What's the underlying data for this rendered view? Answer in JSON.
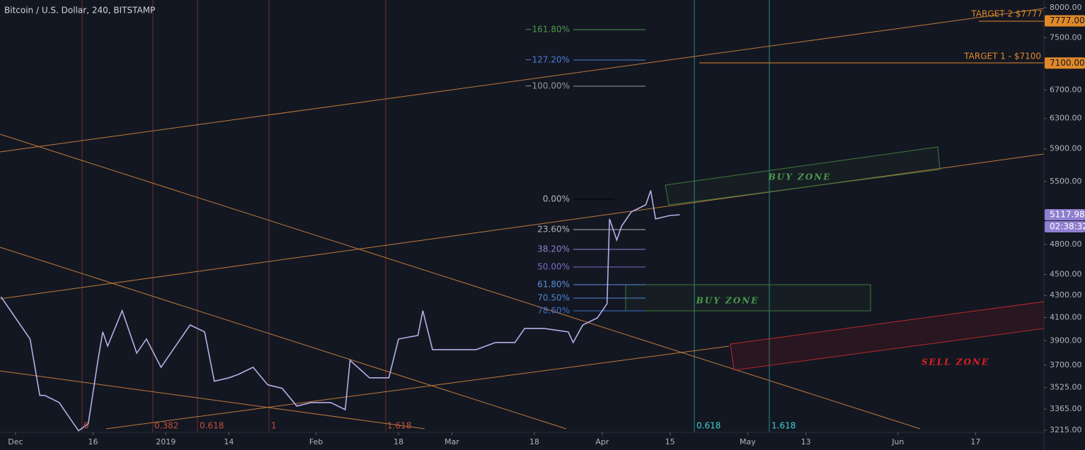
{
  "chart_data": {
    "type": "line",
    "title": "Bitcoin / U.S. Dollar, 240, BITSTAMP",
    "log_scale": true,
    "color": "#b7aee6",
    "x": [
      -3,
      0,
      3,
      5,
      6,
      9,
      11,
      13,
      15,
      17,
      18,
      19,
      22,
      25,
      27,
      30,
      33,
      36,
      39,
      41,
      44,
      46,
      49,
      52,
      55,
      58,
      61,
      65,
      68,
      69,
      73,
      77,
      79,
      83,
      84,
      86,
      90,
      95,
      99,
      103,
      105,
      109,
      114,
      115,
      117,
      120,
      122,
      122.5,
      124,
      125,
      127,
      130,
      131,
      132,
      135,
      137
    ],
    "values": [
      4288,
      4097,
      3914,
      3466,
      3466,
      3413,
      3310,
      3211,
      3260,
      3739,
      3975,
      3855,
      4161,
      3797,
      3914,
      3683,
      3855,
      4035,
      3975,
      3573,
      3600,
      3627,
      3683,
      3546,
      3519,
      3387,
      3413,
      3413,
      3361,
      3739,
      3600,
      3600,
      3914,
      3945,
      4161,
      3826,
      3826,
      3826,
      3885,
      3885,
      4005,
      4005,
      3975,
      3885,
      4035,
      4097,
      4224,
      5072,
      4846,
      4995,
      5150,
      5229,
      5392,
      5072,
      5110,
      5117.98
    ],
    "xlim": [
      -3.2,
      212.1
    ],
    "xticks": [
      {
        "value": 0,
        "label": "Dec"
      },
      16,
      {
        "value": 31,
        "label": "2019"
      },
      {
        "value": 44,
        "label": "14"
      },
      {
        "value": 62,
        "label": "Feb"
      },
      {
        "value": 79,
        "label": "18"
      },
      {
        "value": 90,
        "label": "Mar"
      },
      {
        "value": 107,
        "label": "18"
      },
      {
        "value": 121,
        "label": "Apr"
      },
      {
        "value": 135,
        "label": "15"
      },
      {
        "value": 151,
        "label": "May"
      },
      {
        "value": 163,
        "label": "13"
      },
      {
        "value": 182,
        "label": "Jun"
      },
      {
        "value": 198,
        "label": "17"
      }
    ],
    "ylim": [
      3215,
      8000
    ],
    "yticks": [
      {
        "value": 3215,
        "label": "3215.00"
      },
      {
        "value": 3365,
        "label": "3365.00"
      },
      {
        "value": 3525,
        "label": "3525.00"
      },
      {
        "value": 3700,
        "label": "3700.00"
      },
      {
        "value": 3900,
        "label": "3900.00"
      },
      {
        "value": 4100,
        "label": "4100.00"
      },
      {
        "value": 4300,
        "label": "4300.00"
      },
      {
        "value": 4500,
        "label": "4500.00"
      },
      {
        "value": 4800,
        "label": "4800.00"
      },
      {
        "value": 5500,
        "label": "5500.00"
      },
      {
        "value": 5900,
        "label": "5900.00"
      },
      {
        "value": 6300,
        "label": "6300.00"
      },
      {
        "value": 6700,
        "label": "6700.00"
      },
      {
        "value": 7500,
        "label": "7500.00"
      },
      {
        "value": 8000,
        "label": "8000.00"
      }
    ],
    "price_labels": [
      {
        "value": 7777,
        "label": "7777.00"
      },
      {
        "value": 7100,
        "label": "7100.00"
      },
      {
        "value": 5117.98,
        "label": "5117.98"
      }
    ],
    "countdown": "02:38:32",
    "fib_levels": [
      "−161.80%",
      "−127.20%",
      "−100.00%",
      "0.00%",
      "23.60%",
      "38.20%",
      "50.00%",
      "61.80%",
      "70.50%",
      "78.60%"
    ],
    "targets": [
      "TARGET 2 $7777",
      "TARGET 1 - $7100"
    ],
    "zones": [
      "BUY ZONE",
      "BUY ZONE",
      "SELL ZONE"
    ],
    "time_fib": [
      "0",
      "0.382",
      "0.618",
      "1",
      "1.618",
      "0.618",
      "1.618"
    ]
  }
}
